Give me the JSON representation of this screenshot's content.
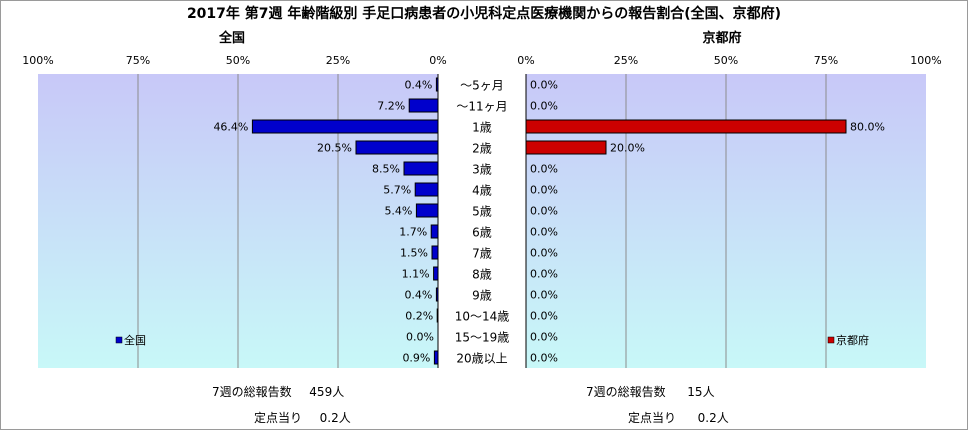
{
  "title": "2017年 第7週 年齢階級別 手足口病患者の小児科定点医療機関からの報告割合(全国、京都府)",
  "categories": [
    "～5ヶ月",
    "～11ヶ月",
    "1歳",
    "2歳",
    "3歳",
    "4歳",
    "5歳",
    "6歳",
    "7歳",
    "8歳",
    "9歳",
    "10～14歳",
    "15～19歳",
    "20歳以上"
  ],
  "colors": {
    "national": "#0000cc",
    "kyoto": "#cc0000",
    "plot_bg_top": "#c8c8f8",
    "plot_bg_bottom": "#c8f8f8"
  },
  "chart_data": [
    {
      "type": "bar",
      "orientation": "horizontal-reversed",
      "title": "全国",
      "categories": [
        "～5ヶ月",
        "～11ヶ月",
        "1歳",
        "2歳",
        "3歳",
        "4歳",
        "5歳",
        "6歳",
        "7歳",
        "8歳",
        "9歳",
        "10～14歳",
        "15～19歳",
        "20歳以上"
      ],
      "series": [
        {
          "name": "全国",
          "values": [
            0.4,
            7.2,
            46.4,
            20.5,
            8.5,
            5.7,
            5.4,
            1.7,
            1.5,
            1.1,
            0.4,
            0.2,
            0.0,
            0.9
          ]
        }
      ],
      "value_labels": [
        "0.4%",
        "7.2%",
        "46.4%",
        "20.5%",
        "8.5%",
        "5.7%",
        "5.4%",
        "1.7%",
        "1.5%",
        "1.1%",
        "0.4%",
        "0.2%",
        "0.0%",
        "0.9%"
      ],
      "xlim": [
        0,
        100
      ],
      "ticks": [
        "0%",
        "25%",
        "50%",
        "75%",
        "100%"
      ],
      "grid": true,
      "legend": "bottom-left"
    },
    {
      "type": "bar",
      "orientation": "horizontal",
      "title": "京都府",
      "categories": [
        "～5ヶ月",
        "～11ヶ月",
        "1歳",
        "2歳",
        "3歳",
        "4歳",
        "5歳",
        "6歳",
        "7歳",
        "8歳",
        "9歳",
        "10～14歳",
        "15～19歳",
        "20歳以上"
      ],
      "series": [
        {
          "name": "京都府",
          "values": [
            0.0,
            0.0,
            80.0,
            20.0,
            0.0,
            0.0,
            0.0,
            0.0,
            0.0,
            0.0,
            0.0,
            0.0,
            0.0,
            0.0
          ]
        }
      ],
      "value_labels": [
        "0.0%",
        "0.0%",
        "80.0%",
        "20.0%",
        "0.0%",
        "0.0%",
        "0.0%",
        "0.0%",
        "0.0%",
        "0.0%",
        "0.0%",
        "0.0%",
        "0.0%",
        "0.0%"
      ],
      "xlim": [
        0,
        100
      ],
      "ticks": [
        "0%",
        "25%",
        "50%",
        "75%",
        "100%"
      ],
      "grid": true,
      "legend": "bottom-right"
    }
  ],
  "footer": {
    "national": {
      "total_label": "7週の総報告数",
      "total_value": "459人",
      "per_label": "定点当り",
      "per_value": "0.2人"
    },
    "kyoto": {
      "total_label": "7週の総報告数",
      "total_value": "15人",
      "per_label": "定点当り",
      "per_value": "0.2人"
    }
  }
}
